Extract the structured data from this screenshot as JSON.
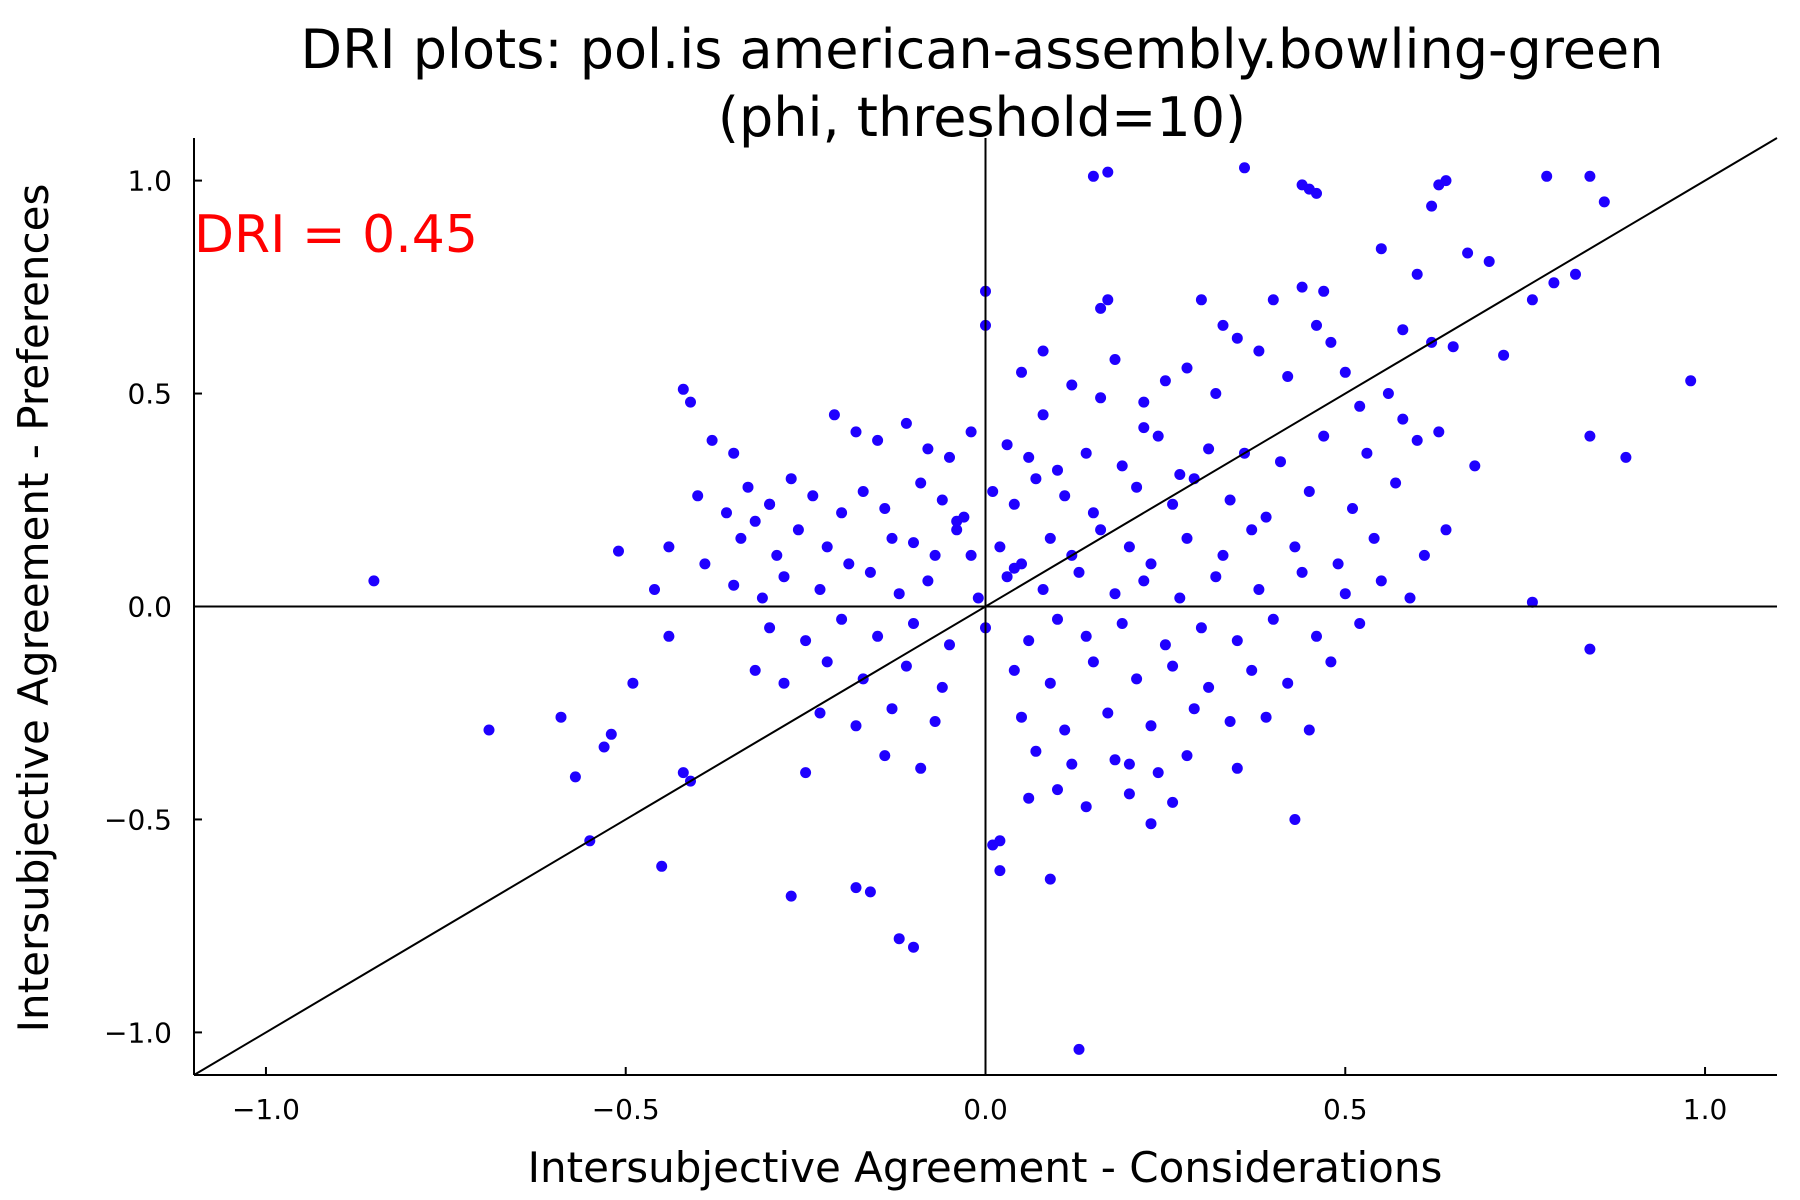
{
  "chart_data": {
    "type": "scatter",
    "title": [
      "DRI plots: pol.is american-assembly.bowling-green",
      "(phi, threshold=10)"
    ],
    "xlabel": "Intersubjective Agreement - Considerations",
    "ylabel": "Intersubjective Agreement - Preferences",
    "xlim": [
      -1.1,
      1.1
    ],
    "ylim": [
      -1.1,
      1.1
    ],
    "x_ticks": [
      -1.0,
      -0.5,
      0.0,
      0.5,
      1.0
    ],
    "y_ticks": [
      -1.0,
      -0.5,
      0.0,
      0.5,
      1.0
    ],
    "x_tick_labels": [
      "−1.0",
      "−0.5",
      "0.0",
      "0.5",
      "1.0"
    ],
    "y_tick_labels": [
      "−1.0",
      "−0.5",
      "0.0",
      "0.5",
      "1.0"
    ],
    "grid": false,
    "legend": "none",
    "annotation": {
      "text": "DRI = 0.45",
      "color": "#ff0000"
    },
    "reference_lines": [
      {
        "kind": "horizontal",
        "y": 0
      },
      {
        "kind": "vertical",
        "x": 0
      },
      {
        "kind": "identity",
        "from": [
          -1.1,
          -1.1
        ],
        "to": [
          1.1,
          1.1
        ]
      }
    ],
    "point_color": "#1f00ff",
    "series": [
      {
        "x": [
          -0.85,
          -0.69,
          -0.59,
          -0.57,
          -0.53,
          -0.52,
          -0.51,
          -0.49,
          -0.46,
          -0.45,
          -0.44,
          -0.42,
          -0.41,
          -0.38,
          -0.35,
          -0.32,
          -0.3,
          0.0,
          0.0,
          0.01,
          0.02,
          0.02,
          0.13,
          0.17,
          0.15,
          0.17,
          0.16,
          0.36,
          0.44,
          0.45,
          0.46,
          0.62,
          0.63,
          0.64,
          0.78,
          0.84,
          0.86,
          0.98,
          0.89,
          0.84,
          0.76,
          -0.27,
          -0.18,
          -0.16,
          -0.12,
          -0.1,
          -0.25,
          0.43,
          0.23,
          0.2,
          0.09,
          -0.42,
          -0.41,
          -0.55,
          0.84,
          0.76,
          0.82,
          0.79,
          0.7,
          0.72,
          0.67,
          0.6,
          0.58,
          0.55,
          0.62,
          0.65,
          0.5,
          0.48,
          0.46,
          0.47,
          0.4,
          0.44,
          0.35,
          0.33,
          0.3,
          0.05,
          0.08,
          0.12,
          0.18,
          0.22,
          0.25,
          0.28,
          0.32,
          0.38,
          0.42,
          0.52,
          0.56,
          0.58,
          0.63,
          0.68,
          -0.21,
          -0.18,
          -0.15,
          -0.11,
          -0.08,
          -0.05,
          -0.02,
          0.03,
          0.06,
          0.1,
          0.14,
          0.19,
          0.24,
          0.27,
          0.31,
          0.36,
          0.41,
          0.47,
          0.53,
          0.6,
          -0.4,
          -0.36,
          -0.33,
          -0.3,
          -0.27,
          -0.24,
          -0.2,
          -0.17,
          -0.14,
          -0.09,
          -0.06,
          -0.03,
          0.01,
          0.04,
          0.07,
          0.11,
          0.15,
          0.21,
          0.26,
          0.29,
          0.34,
          0.39,
          0.45,
          0.51,
          0.57,
          -0.44,
          -0.39,
          -0.34,
          -0.29,
          -0.26,
          -0.22,
          -0.19,
          -0.13,
          -0.07,
          -0.04,
          0.02,
          0.05,
          0.09,
          0.12,
          0.16,
          0.2,
          0.23,
          0.28,
          0.33,
          0.37,
          0.43,
          0.49,
          0.54,
          0.61,
          0.64,
          -0.35,
          -0.31,
          -0.28,
          -0.23,
          -0.16,
          -0.12,
          -0.08,
          -0.01,
          0.03,
          0.08,
          0.13,
          0.18,
          0.22,
          0.27,
          0.32,
          0.38,
          0.44,
          0.5,
          0.55,
          0.59,
          -0.3,
          -0.25,
          -0.2,
          -0.15,
          -0.1,
          -0.05,
          0.0,
          0.06,
          0.1,
          0.14,
          0.19,
          0.25,
          0.3,
          0.35,
          0.4,
          0.46,
          0.52,
          -0.32,
          -0.28,
          -0.22,
          -0.17,
          -0.11,
          -0.06,
          0.04,
          0.09,
          0.15,
          0.21,
          0.26,
          0.31,
          0.37,
          0.42,
          0.48,
          -0.23,
          -0.18,
          -0.13,
          -0.07,
          0.05,
          0.11,
          0.17,
          0.23,
          0.29,
          0.34,
          0.39,
          0.45,
          -0.14,
          -0.09,
          0.07,
          0.12,
          0.18,
          0.24,
          0.28,
          0.35,
          0.06,
          0.1,
          0.14,
          0.2,
          0.26,
          -0.04,
          -0.1,
          -0.02,
          0.04,
          0.08,
          0.16,
          0.22
        ],
        "y": [
          0.06,
          -0.29,
          -0.26,
          -0.4,
          -0.33,
          -0.3,
          0.13,
          -0.18,
          0.04,
          -0.61,
          -0.07,
          0.51,
          0.48,
          0.39,
          0.36,
          0.2,
          0.24,
          0.74,
          0.66,
          -0.56,
          -0.62,
          -0.55,
          -1.04,
          1.02,
          1.01,
          0.72,
          0.7,
          1.03,
          0.99,
          0.98,
          0.97,
          0.94,
          0.99,
          1.0,
          1.01,
          1.01,
          0.95,
          0.53,
          0.35,
          0.4,
          0.01,
          -0.68,
          -0.66,
          -0.67,
          -0.78,
          -0.8,
          -0.39,
          -0.5,
          -0.51,
          -0.37,
          -0.64,
          -0.39,
          -0.41,
          -0.55,
          -0.1,
          0.72,
          0.78,
          0.76,
          0.81,
          0.59,
          0.83,
          0.78,
          0.65,
          0.84,
          0.62,
          0.61,
          0.55,
          0.62,
          0.66,
          0.74,
          0.72,
          0.75,
          0.63,
          0.66,
          0.72,
          0.55,
          0.6,
          0.52,
          0.58,
          0.48,
          0.53,
          0.56,
          0.5,
          0.6,
          0.54,
          0.47,
          0.5,
          0.44,
          0.41,
          0.33,
          0.45,
          0.41,
          0.39,
          0.43,
          0.37,
          0.35,
          0.41,
          0.38,
          0.35,
          0.32,
          0.36,
          0.33,
          0.4,
          0.31,
          0.37,
          0.36,
          0.34,
          0.4,
          0.36,
          0.39,
          0.26,
          0.22,
          0.28,
          0.24,
          0.3,
          0.26,
          0.22,
          0.27,
          0.23,
          0.29,
          0.25,
          0.21,
          0.27,
          0.24,
          0.3,
          0.26,
          0.22,
          0.28,
          0.24,
          0.3,
          0.25,
          0.21,
          0.27,
          0.23,
          0.29,
          0.14,
          0.1,
          0.16,
          0.12,
          0.18,
          0.14,
          0.1,
          0.16,
          0.12,
          0.18,
          0.14,
          0.1,
          0.16,
          0.12,
          0.18,
          0.14,
          0.1,
          0.16,
          0.12,
          0.18,
          0.14,
          0.1,
          0.16,
          0.12,
          0.18,
          0.05,
          0.02,
          0.07,
          0.04,
          0.08,
          0.03,
          0.06,
          0.02,
          0.07,
          0.04,
          0.08,
          0.03,
          0.06,
          0.02,
          0.07,
          0.04,
          0.08,
          0.03,
          0.06,
          0.02,
          -0.05,
          -0.08,
          -0.03,
          -0.07,
          -0.04,
          -0.09,
          -0.05,
          -0.08,
          -0.03,
          -0.07,
          -0.04,
          -0.09,
          -0.05,
          -0.08,
          -0.03,
          -0.07,
          -0.04,
          -0.15,
          -0.18,
          -0.13,
          -0.17,
          -0.14,
          -0.19,
          -0.15,
          -0.18,
          -0.13,
          -0.17,
          -0.14,
          -0.19,
          -0.15,
          -0.18,
          -0.13,
          -0.25,
          -0.28,
          -0.24,
          -0.27,
          -0.26,
          -0.29,
          -0.25,
          -0.28,
          -0.24,
          -0.27,
          -0.26,
          -0.29,
          -0.35,
          -0.38,
          -0.34,
          -0.37,
          -0.36,
          -0.39,
          -0.35,
          -0.38,
          -0.45,
          -0.43,
          -0.47,
          -0.44,
          -0.46,
          0.2,
          0.15,
          0.12,
          0.09,
          0.45,
          0.49,
          0.42
        ]
      }
    ]
  }
}
